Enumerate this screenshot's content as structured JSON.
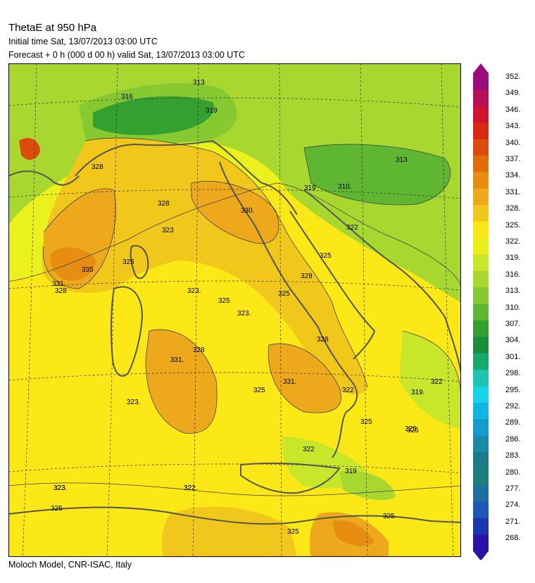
{
  "header": {
    "title": "ThetaE at 950 hPa",
    "initial_time": "Initial time  Sat, 13/07/2013  03:00 UTC",
    "forecast": "Forecast  +    0 h  (000 d 00 h)  valid Sat, 13/07/2013 03:00 UTC"
  },
  "footer": {
    "credit": "Moloch Model, CNR-ISAC, Italy"
  },
  "legend": {
    "labels": [
      "352.",
      "349.",
      "346.",
      "343.",
      "340.",
      "337.",
      "334.",
      "331.",
      "328.",
      "325.",
      "322.",
      "319.",
      "316.",
      "313.",
      "310.",
      "307.",
      "304.",
      "301.",
      "298.",
      "295.",
      "292.",
      "289.",
      "286.",
      "283.",
      "280.",
      "277.",
      "274.",
      "271.",
      "268."
    ],
    "colors": [
      "#9b0d7a",
      "#b80f55",
      "#cf1432",
      "#d62a12",
      "#dc4a0c",
      "#e06d0a",
      "#e78d12",
      "#eda91b",
      "#f2c71c",
      "#fbe816",
      "#e9f01a",
      "#c8e62a",
      "#a8d830",
      "#86c931",
      "#5fb630",
      "#34a030",
      "#1a8e3a",
      "#18a86a",
      "#1fc3b2",
      "#1ad2e6",
      "#12b4e0",
      "#129ccc",
      "#1a8aa8",
      "#1d7a8a",
      "#1e7e7e",
      "#1f6ea0",
      "#1c58b4",
      "#1a36b0",
      "#2a14a8"
    ]
  },
  "map": {
    "contour_labels": [
      "316",
      "313",
      "319",
      "328",
      "313",
      "310.",
      "319",
      "330.",
      "328",
      "323",
      "335",
      "331",
      "328",
      "325",
      "325",
      "323.",
      "325",
      "328",
      "323.",
      "325",
      "322",
      "331.",
      "328",
      "331.",
      "323.",
      "325",
      "328",
      "325",
      "325",
      "323.",
      "322",
      "325",
      "319.",
      "322",
      "322",
      "322",
      "319",
      "323.",
      "322.",
      "325",
      "325",
      "325"
    ]
  }
}
